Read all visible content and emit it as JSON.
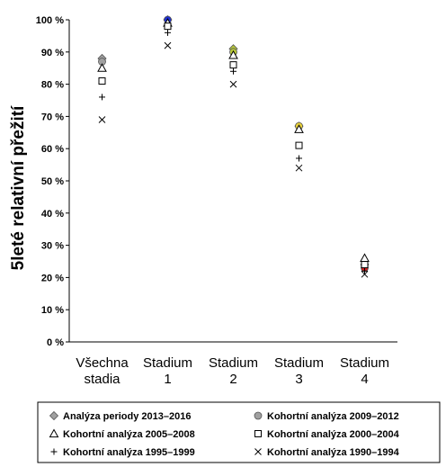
{
  "chart_data": {
    "type": "scatter",
    "ylabel": "5leté relativní přežití",
    "ylim": [
      0,
      100
    ],
    "yticks": [
      0,
      10,
      20,
      30,
      40,
      50,
      60,
      70,
      80,
      90,
      100
    ],
    "ytick_labels": [
      "0 %",
      "10 %",
      "20 %",
      "30 %",
      "40 %",
      "50 %",
      "60 %",
      "70 %",
      "80 %",
      "90 %",
      "100 %"
    ],
    "categories": [
      [
        "Všechna",
        "stadia"
      ],
      [
        "Stadium",
        "1"
      ],
      [
        "Stadium",
        "2"
      ],
      [
        "Stadium",
        "3"
      ],
      [
        "Stadium",
        "4"
      ]
    ],
    "grid": false,
    "legend_position": "bottom",
    "series": [
      {
        "name": "Analýza periody 2013–2016",
        "marker": "diamond",
        "values": [
          88,
          100,
          91,
          67,
          24
        ],
        "fill": "#a0a0a0",
        "category_fills": [
          "#a0a0a0",
          "#1f2fd0",
          "#b8c83a",
          "#e6cf3a",
          "#d02020"
        ]
      },
      {
        "name": "Kohortní analýza 2009–2012",
        "marker": "circle",
        "values": [
          87,
          100,
          90,
          67,
          23
        ],
        "fill": "#a0a0a0",
        "category_fills": [
          "#a0a0a0",
          "#1f2fd0",
          "#b8c83a",
          "#e6cf3a",
          "#d02020"
        ]
      },
      {
        "name": "Kohortní analýza 2005–2008",
        "marker": "triangle",
        "values": [
          85,
          99,
          89,
          66,
          26
        ]
      },
      {
        "name": "Kohortní analýza 2000–2004",
        "marker": "square",
        "values": [
          81,
          98,
          86,
          61,
          24
        ]
      },
      {
        "name": "Kohortní analýza 1995–1999",
        "marker": "plus",
        "values": [
          76,
          96,
          84,
          57,
          22
        ]
      },
      {
        "name": "Kohortní analýza 1990–1994",
        "marker": "x",
        "values": [
          69,
          92,
          80,
          54,
          21
        ]
      }
    ]
  }
}
